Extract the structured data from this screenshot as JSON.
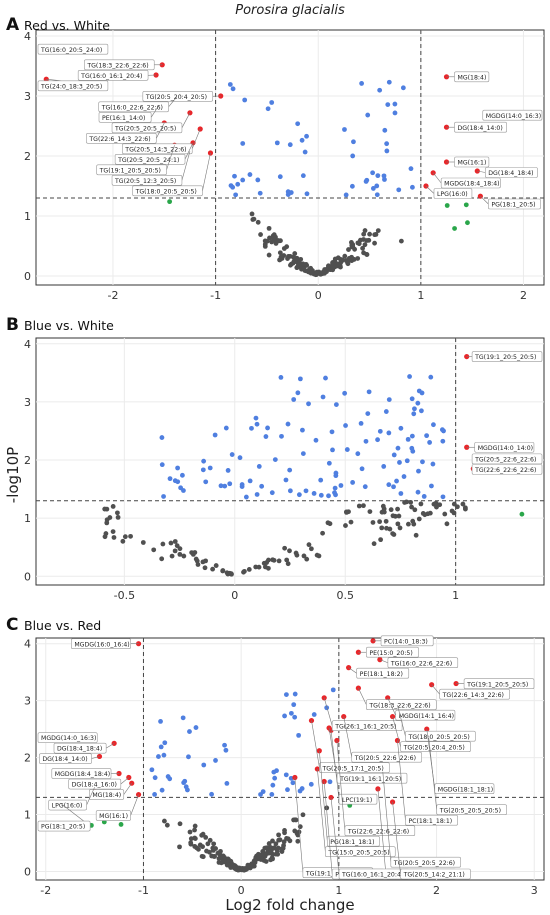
{
  "figure": {
    "title": "Porosira glacialis",
    "ylabel": "-log10P",
    "xlabel": "Log2 fold change"
  },
  "colors": {
    "nonsig": "#505050",
    "blue": "#4f7fe0",
    "red": "#e8262a",
    "green": "#2aa64a",
    "grid": "#ebebeb",
    "threshold": "#444444"
  },
  "chart_data": [
    {
      "type": "scatter",
      "panel_letter": "A",
      "title": "Red vs. White",
      "xlim": [
        -2.75,
        2.2
      ],
      "ylim": [
        -0.15,
        4.1
      ],
      "xticks": [
        -2,
        -1,
        0,
        1,
        2
      ],
      "yticks": [
        0,
        1,
        2,
        3,
        4
      ],
      "grid": true,
      "thresholds": {
        "x": [
          -1,
          1
        ],
        "y": 1.3
      },
      "labeled_points": [
        {
          "x": -2.55,
          "y": 3.78,
          "label": "TG(16:0_20:5_24:0)"
        },
        {
          "x": -2.65,
          "y": 3.28,
          "label": "TG(24:0_18:3_20:5)"
        },
        {
          "x": -1.52,
          "y": 3.52,
          "label": "TG(18:3_22:6_22:6)"
        },
        {
          "x": -1.58,
          "y": 3.35,
          "label": "TG(16:0_16:1_20:4)"
        },
        {
          "x": -1.38,
          "y": 2.98,
          "label": "TG(16:0_22:6_22:6)"
        },
        {
          "x": -1.55,
          "y": 2.85,
          "label": "PE(16:1_14:0)"
        },
        {
          "x": -1.25,
          "y": 2.72,
          "label": "TG(20:5_20:5_20:5)"
        },
        {
          "x": -0.95,
          "y": 3.0,
          "label": "TG(20:5_20:4_20:5)"
        },
        {
          "x": -1.5,
          "y": 2.55,
          "label": "TG(22:6_14:3_22:6)"
        },
        {
          "x": -1.15,
          "y": 2.45,
          "label": "TG(20:5_14:3_22:6)"
        },
        {
          "x": -1.22,
          "y": 2.22,
          "label": "TG(20:5_20:5_24:1)"
        },
        {
          "x": -1.4,
          "y": 2.18,
          "label": "TG(19:1_20:5_20:5)"
        },
        {
          "x": -1.25,
          "y": 2.08,
          "label": "TG(20:5_12:3_20:5)"
        },
        {
          "x": -1.05,
          "y": 2.05,
          "label": "TG(18:0_20:5_20:5)"
        },
        {
          "x": 1.25,
          "y": 3.32,
          "label": "MG(18:4)"
        },
        {
          "x": 2.05,
          "y": 2.68,
          "label": "MGDG(14:0_16:3)"
        },
        {
          "x": 1.25,
          "y": 2.48,
          "label": "DG(18:4_14:0)"
        },
        {
          "x": 1.25,
          "y": 1.9,
          "label": "MG(16:1)"
        },
        {
          "x": 1.55,
          "y": 1.75,
          "label": "DG(18:4_18:4)"
        },
        {
          "x": 1.12,
          "y": 1.72,
          "label": "MGDG(18:4_18:4)"
        },
        {
          "x": 1.05,
          "y": 1.5,
          "label": "LPG(16:0)"
        },
        {
          "x": 1.58,
          "y": 1.33,
          "label": "PG(18:1_20:5)"
        }
      ]
    },
    {
      "type": "scatter",
      "panel_letter": "B",
      "title": "Blue vs. White",
      "xlim": [
        -0.9,
        1.4
      ],
      "ylim": [
        -0.15,
        4.1
      ],
      "xticks": [
        -0.5,
        0.0,
        0.5,
        1.0
      ],
      "yticks": [
        0,
        1,
        2,
        3,
        4
      ],
      "grid": true,
      "thresholds": {
        "x": [
          1
        ],
        "y": 1.3
      },
      "labeled_points": [
        {
          "x": 1.05,
          "y": 3.78,
          "label": "TG(19:1_20:5_20:5)"
        },
        {
          "x": 1.05,
          "y": 2.22,
          "label": "MGDG(14:0_14:0)"
        },
        {
          "x": 1.1,
          "y": 2.02,
          "label": "TG(20:5_22:6_22:6)"
        },
        {
          "x": 1.08,
          "y": 1.85,
          "label": "TG(22:6_22:6_22:6)"
        }
      ]
    },
    {
      "type": "scatter",
      "panel_letter": "C",
      "title": "Blue vs. Red",
      "xlim": [
        -2.1,
        3.1
      ],
      "ylim": [
        -0.15,
        4.1
      ],
      "xticks": [
        -2,
        -1,
        0,
        1,
        2,
        3
      ],
      "yticks": [
        0,
        1,
        2,
        3,
        4
      ],
      "grid": true,
      "thresholds": {
        "x": [
          -1,
          1
        ],
        "y": 1.3
      },
      "labeled_points": [
        {
          "x": -1.05,
          "y": 4.0,
          "label": "MGDG(16:0_16:4)"
        },
        {
          "x": -1.75,
          "y": 2.35,
          "label": "MGDG(14:0_16:3)"
        },
        {
          "x": -1.3,
          "y": 2.25,
          "label": "DG(18:4_18:4)"
        },
        {
          "x": -1.45,
          "y": 2.02,
          "label": "DG(18:4_14:0)"
        },
        {
          "x": -1.25,
          "y": 1.72,
          "label": "MGDG(18:4_18:4)"
        },
        {
          "x": -1.15,
          "y": 1.65,
          "label": "DG(18:4_16:0)"
        },
        {
          "x": -1.12,
          "y": 1.55,
          "label": "MG(18:4)"
        },
        {
          "x": -1.5,
          "y": 1.48,
          "label": "LPG(16:0)"
        },
        {
          "x": -1.05,
          "y": 1.35,
          "label": "MG(16:1)"
        },
        {
          "x": -1.85,
          "y": 1.2,
          "label": "PG(18:1_20:5)"
        },
        {
          "x": 1.35,
          "y": 4.05,
          "label": "PC(14:0_18:3)"
        },
        {
          "x": 1.2,
          "y": 3.85,
          "label": "PE(15:0_20:5)"
        },
        {
          "x": 1.42,
          "y": 3.72,
          "label": "TG(16:0_22:6_22:6)"
        },
        {
          "x": 1.1,
          "y": 3.58,
          "label": "PE(18:1_18:2)"
        },
        {
          "x": 2.2,
          "y": 3.3,
          "label": "TG(19:1_20:5_20:5)"
        },
        {
          "x": 1.95,
          "y": 3.28,
          "label": "TG(22:6_14:3_22:6)"
        },
        {
          "x": 1.2,
          "y": 3.22,
          "label": "TG(18:3_22:6_22:6)"
        },
        {
          "x": 1.5,
          "y": 3.05,
          "label": "MGDG(14:1_16:4)"
        },
        {
          "x": 1.6,
          "y": 2.92,
          "label": "TG(18:0_20:5_20:5)"
        },
        {
          "x": 0.85,
          "y": 3.05,
          "label": "TG(26:1_16:1_20:5)"
        },
        {
          "x": 1.55,
          "y": 2.72,
          "label": "TG(20:5_20:4_20:5)"
        },
        {
          "x": 0.72,
          "y": 2.65,
          "label": "TG(20:5_17:1_20:5)"
        },
        {
          "x": 1.05,
          "y": 2.72,
          "label": "TG(20:5_22:6_22:6)"
        },
        {
          "x": 1.9,
          "y": 2.5,
          "label": "MGDG(18:1_18:1)"
        },
        {
          "x": 0.9,
          "y": 2.52,
          "label": "TG(19:1_16:1_20:5)"
        },
        {
          "x": 0.92,
          "y": 2.48,
          "label": "LPC(19:1)"
        },
        {
          "x": 1.6,
          "y": 2.3,
          "label": "PC(18:1_18:1)"
        },
        {
          "x": 1.92,
          "y": 2.35,
          "label": "TG(20:5_20:5_20:5)"
        },
        {
          "x": 0.98,
          "y": 2.3,
          "label": "TG(22:6_22:6_22:6)"
        },
        {
          "x": 0.8,
          "y": 2.12,
          "label": "PG(18:1_18:1)"
        },
        {
          "x": 0.78,
          "y": 1.8,
          "label": "TG(15:0_20:5_20:5)"
        },
        {
          "x": 0.55,
          "y": 1.65,
          "label": "TG(19:1_18:4_20:5)"
        },
        {
          "x": 0.85,
          "y": 1.58,
          "label": "PC(19:1_20:5)"
        },
        {
          "x": 1.45,
          "y": 1.75,
          "label": "TG(20:5_20:5_22:6)"
        },
        {
          "x": 1.4,
          "y": 1.45,
          "label": "TG(20:5_12:3_20:5)"
        },
        {
          "x": 0.92,
          "y": 1.3,
          "label": "TG(16:0_16:1_20:4)"
        },
        {
          "x": 1.55,
          "y": 1.22,
          "label": "TG(20:5_14:2_21:1)"
        }
      ]
    }
  ]
}
